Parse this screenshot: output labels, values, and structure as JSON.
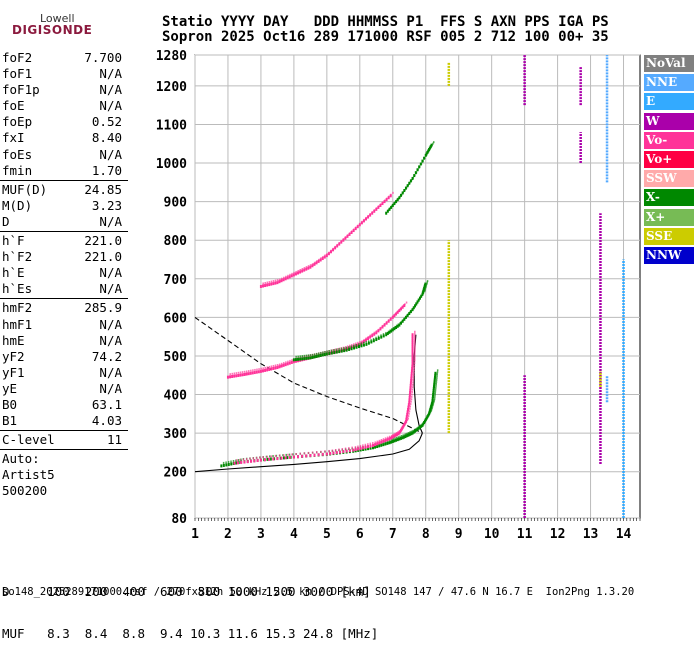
{
  "logo": {
    "brand": "Lowell",
    "product": "DIGISONDE"
  },
  "header": {
    "line1": "Statio YYYY DAY   DDD HHMMSS P1  FFS S AXN PPS IGA PS",
    "line2": "Sopron 2025 Oct16 289 171000 RSF 005 2 712 100 00+ 35"
  },
  "params": [
    {
      "group": [
        {
          "label": "foF2",
          "value": "7.700"
        },
        {
          "label": "foF1",
          "value": "N/A"
        },
        {
          "label": "foF1p",
          "value": "N/A"
        },
        {
          "label": "foE",
          "value": "N/A"
        },
        {
          "label": "foEp",
          "value": "0.52"
        },
        {
          "label": "fxI",
          "value": "8.40"
        },
        {
          "label": "foEs",
          "value": "N/A"
        },
        {
          "label": "fmin",
          "value": "1.70"
        }
      ]
    },
    {
      "group": [
        {
          "label": "MUF(D)",
          "value": "24.85"
        },
        {
          "label": "M(D)",
          "value": "3.23"
        },
        {
          "label": "D",
          "value": "N/A"
        }
      ]
    },
    {
      "group": [
        {
          "label": "h`F",
          "value": "221.0"
        },
        {
          "label": "h`F2",
          "value": "221.0"
        },
        {
          "label": "h`E",
          "value": "N/A"
        },
        {
          "label": "h`Es",
          "value": "N/A"
        }
      ]
    },
    {
      "group": [
        {
          "label": "hmF2",
          "value": "285.9"
        },
        {
          "label": "hmF1",
          "value": "N/A"
        },
        {
          "label": "hmE",
          "value": "N/A"
        },
        {
          "label": "yF2",
          "value": "74.2"
        },
        {
          "label": "yF1",
          "value": "N/A"
        },
        {
          "label": "yE",
          "value": "N/A"
        },
        {
          "label": "B0",
          "value": "63.1"
        },
        {
          "label": "B1",
          "value": "4.03"
        }
      ]
    },
    {
      "group": [
        {
          "label": "C-level",
          "value": "11"
        }
      ]
    },
    {
      "group": [
        {
          "label": "Auto:",
          "value": ""
        },
        {
          "label": "Artist5",
          "value": ""
        },
        {
          "label": "500200",
          "value": ""
        }
      ]
    }
  ],
  "legend": [
    {
      "label": "NoVal",
      "color": "#808080"
    },
    {
      "label": "NNE",
      "color": "#55aaff"
    },
    {
      "label": "E",
      "color": "#33aaff"
    },
    {
      "label": "W",
      "color": "#aa00aa"
    },
    {
      "label": "Vo-",
      "color": "#ff3399"
    },
    {
      "label": "Vo+",
      "color": "#ff0044"
    },
    {
      "label": "SSW",
      "color": "#ffaaaa"
    },
    {
      "label": "X-",
      "color": "#008800"
    },
    {
      "label": "X+",
      "color": "#77bb55"
    },
    {
      "label": "SSE",
      "color": "#cccc00"
    },
    {
      "label": "NNW",
      "color": "#0000cc"
    }
  ],
  "dmuf": {
    "line1": "D     100  200  400  600  800 1000 1500 3000 [km]",
    "line2": "MUF   8.3  8.4  8.8  9.4 10.3 11.6 15.3 24.8 [MHz]"
  },
  "footer": "so148_2025289171000.rsf / 270fx512h 50 kHz 2.5 km / DPS-4D SO148 147 / 47.6 N 16.7 E  Ion2Png 1.3.20",
  "chart_data": {
    "type": "scatter",
    "x_ticks": [
      1,
      2,
      3,
      4,
      5,
      6,
      7,
      8,
      9,
      10,
      11,
      12,
      13,
      14
    ],
    "y_ticks": [
      80,
      200,
      300,
      400,
      500,
      600,
      700,
      800,
      900,
      1000,
      1100,
      1200,
      1280
    ],
    "xlim": [
      1,
      14.5
    ],
    "ylim": [
      80,
      1280
    ],
    "grid": true,
    "series": [
      {
        "color": "#008800",
        "points": [
          [
            1.8,
            215
          ],
          [
            2.4,
            225
          ],
          [
            3.2,
            232
          ],
          [
            4,
            238
          ],
          [
            5,
            245
          ],
          [
            5.8,
            253
          ],
          [
            6.4,
            262
          ],
          [
            6.9,
            275
          ],
          [
            7.3,
            288
          ],
          [
            7.6,
            300
          ],
          [
            7.9,
            320
          ],
          [
            8.1,
            350
          ],
          [
            8.2,
            380
          ],
          [
            8.25,
            420
          ],
          [
            8.3,
            460
          ]
        ]
      },
      {
        "color": "#ff3399",
        "points": [
          [
            2.2,
            222
          ],
          [
            3,
            230
          ],
          [
            4,
            238
          ],
          [
            5,
            246
          ],
          [
            5.8,
            256
          ],
          [
            6.4,
            268
          ],
          [
            6.9,
            285
          ],
          [
            7.2,
            300
          ],
          [
            7.4,
            330
          ],
          [
            7.5,
            380
          ],
          [
            7.55,
            430
          ],
          [
            7.6,
            480
          ],
          [
            7.6,
            520
          ],
          [
            7.6,
            560
          ]
        ]
      },
      {
        "color": "#ff3399",
        "points": [
          [
            2,
            445
          ],
          [
            2.5,
            452
          ],
          [
            3,
            460
          ],
          [
            3.5,
            470
          ],
          [
            4,
            485
          ],
          [
            4.5,
            495
          ],
          [
            5,
            505
          ],
          [
            5.5,
            515
          ],
          [
            6,
            530
          ],
          [
            6.5,
            560
          ],
          [
            7,
            600
          ],
          [
            7.4,
            635
          ]
        ]
      },
      {
        "color": "#008800",
        "points": [
          [
            4,
            490
          ],
          [
            4.5,
            495
          ],
          [
            5,
            505
          ],
          [
            5.6,
            515
          ],
          [
            6.2,
            530
          ],
          [
            6.8,
            555
          ],
          [
            7.2,
            580
          ],
          [
            7.6,
            620
          ],
          [
            7.9,
            660
          ],
          [
            8,
            690
          ]
        ]
      },
      {
        "color": "#ff3399",
        "points": [
          [
            3,
            680
          ],
          [
            3.5,
            690
          ],
          [
            4,
            710
          ],
          [
            4.5,
            730
          ],
          [
            5,
            760
          ],
          [
            5.5,
            800
          ],
          [
            6,
            840
          ],
          [
            6.5,
            880
          ],
          [
            7,
            920
          ]
        ]
      },
      {
        "color": "#008800",
        "points": [
          [
            6.8,
            870
          ],
          [
            7.2,
            910
          ],
          [
            7.6,
            960
          ],
          [
            8,
            1020
          ],
          [
            8.2,
            1050
          ]
        ]
      }
    ],
    "curves": [
      {
        "style": "solid",
        "points": [
          [
            1,
            200
          ],
          [
            2,
            207
          ],
          [
            3,
            213
          ],
          [
            4,
            219
          ],
          [
            5,
            226
          ],
          [
            6,
            234
          ],
          [
            7,
            246
          ],
          [
            7.5,
            258
          ],
          [
            7.8,
            280
          ],
          [
            7.9,
            300
          ]
        ]
      },
      {
        "style": "solid",
        "points": [
          [
            7.9,
            300
          ],
          [
            7.8,
            320
          ],
          [
            7.7,
            360
          ],
          [
            7.65,
            420
          ],
          [
            7.65,
            500
          ],
          [
            7.7,
            555
          ]
        ]
      },
      {
        "style": "dashed",
        "points": [
          [
            1,
            600
          ],
          [
            2,
            540
          ],
          [
            3,
            480
          ],
          [
            4,
            430
          ],
          [
            5,
            395
          ],
          [
            6,
            365
          ],
          [
            7,
            338
          ],
          [
            7.9,
            300
          ]
        ]
      }
    ],
    "vertical_bands": [
      {
        "color": "#cccc00",
        "x": 8.7,
        "y": [
          300,
          800
        ]
      },
      {
        "color": "#cccc00",
        "x": 8.7,
        "y": [
          1200,
          1260
        ]
      },
      {
        "color": "#aa00aa",
        "x": 11,
        "y": [
          80,
          450
        ]
      },
      {
        "color": "#aa00aa",
        "x": 11,
        "y": [
          1150,
          1280
        ]
      },
      {
        "color": "#aa00aa",
        "x": 13.3,
        "y": [
          220,
          870
        ]
      },
      {
        "color": "#55aaff",
        "x": 13.5,
        "y": [
          950,
          1280
        ]
      },
      {
        "color": "#55aaff",
        "x": 13.5,
        "y": [
          380,
          450
        ]
      },
      {
        "color": "#33aaff",
        "x": 14,
        "y": [
          80,
          750
        ]
      },
      {
        "color": "#aa00aa",
        "x": 12.7,
        "y": [
          1150,
          1250
        ]
      },
      {
        "color": "#aa00aa",
        "x": 12.7,
        "y": [
          1000,
          1080
        ]
      },
      {
        "color": "#cccc00",
        "x": 13.3,
        "y": [
          420,
          460
        ]
      }
    ]
  }
}
